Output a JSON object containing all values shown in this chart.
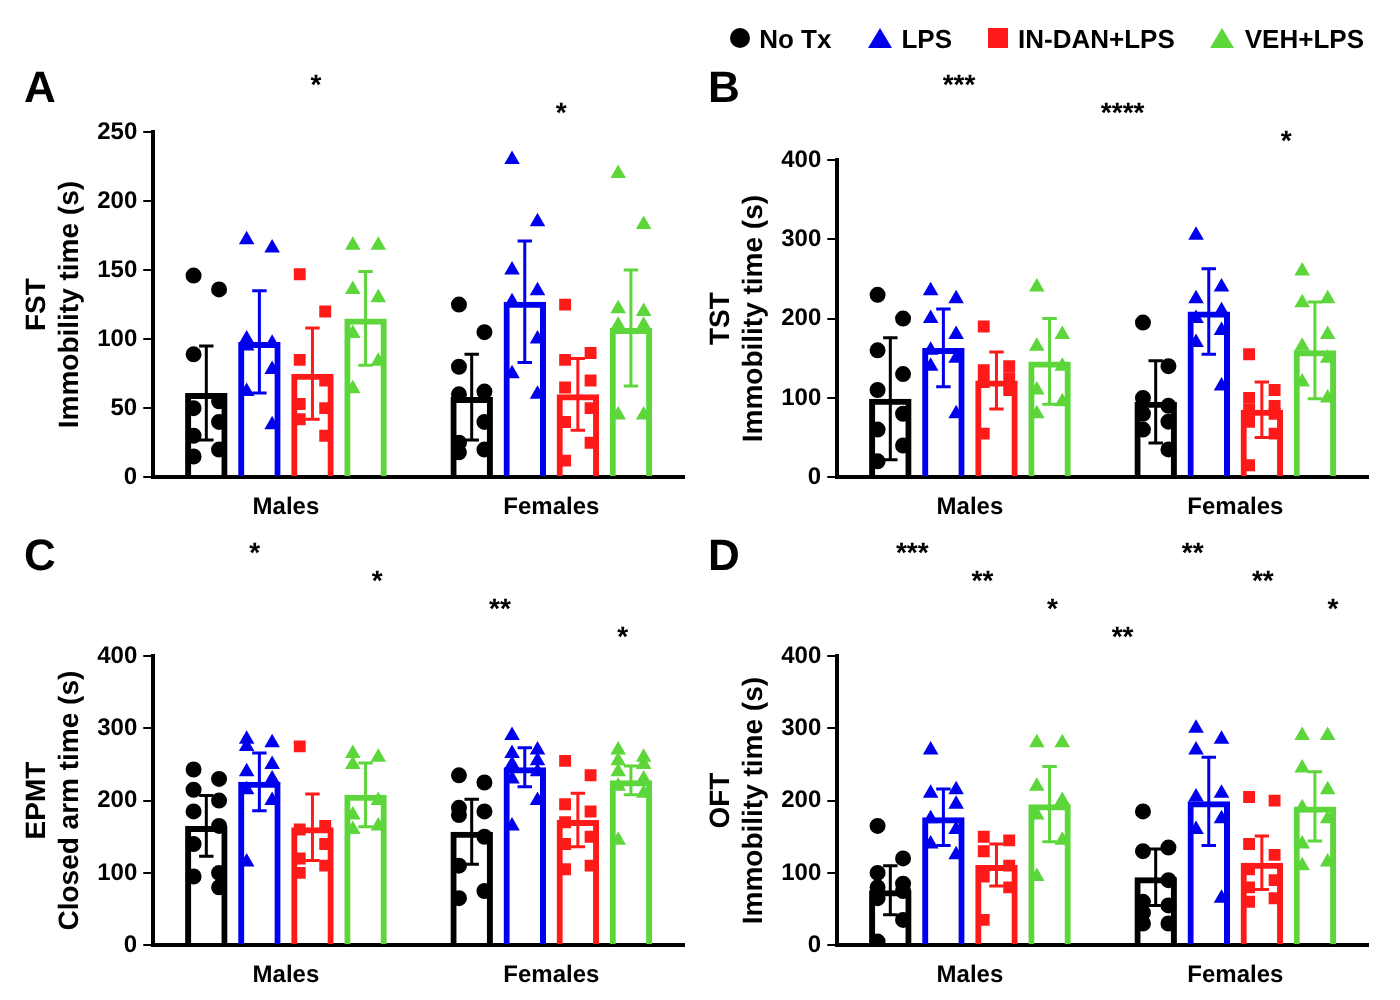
{
  "chart_data": [
    {
      "type": "bar",
      "title": "A",
      "ylabel": "FST\nImmobility time (s)",
      "categories": [
        "Males",
        "Females"
      ],
      "ylim": [
        0,
        250
      ],
      "yticks": [
        0,
        50,
        100,
        150,
        200,
        250
      ],
      "grid": false,
      "legend": "top",
      "annotations": [
        "*",
        "*"
      ],
      "series": [
        {
          "type": "bar",
          "name": "No Tx",
          "color": "#000000",
          "values": [
            61,
            58
          ],
          "errors": [
            34,
            31
          ]
        },
        {
          "type": "bar",
          "name": "LPS",
          "color": "#0000ee",
          "values": [
            98,
            127
          ],
          "errors": [
            37,
            44
          ]
        },
        {
          "type": "bar",
          "name": "IN-DAN+LPS",
          "color": "#ff1a1a",
          "values": [
            75,
            60
          ],
          "errors": [
            33,
            26
          ]
        },
        {
          "type": "bar",
          "name": "VEH+LPS",
          "color": "#5cd63a",
          "values": [
            115,
            108
          ],
          "errors": [
            34,
            42
          ]
        },
        {
          "type": "scatter",
          "color": "#000000",
          "marker": "circle",
          "x": [
            "Males",
            "Males",
            "Males",
            "Males",
            "Males",
            "Males",
            "Males",
            "Males",
            "Males",
            "Females",
            "Females",
            "Females",
            "Females",
            "Females",
            "Females",
            "Females",
            "Females",
            "Females"
          ],
          "values": [
            146,
            136,
            89,
            55,
            50,
            40,
            30,
            20,
            15,
            125,
            105,
            80,
            62,
            60,
            40,
            25,
            20,
            18
          ]
        },
        {
          "type": "scatter",
          "color": "#0000ee",
          "marker": "triangle",
          "x": [
            "Males",
            "Males",
            "Males",
            "Males",
            "Males",
            "Males",
            "Males",
            "Males",
            "Females",
            "Females",
            "Females",
            "Females",
            "Females",
            "Females",
            "Females",
            "Females"
          ],
          "values": [
            172,
            166,
            100,
            97,
            95,
            78,
            62,
            38,
            230,
            185,
            150,
            135,
            127,
            100,
            75,
            60
          ]
        },
        {
          "type": "scatter",
          "color": "#ff1a1a",
          "marker": "square",
          "x": [
            "Males",
            "Males",
            "Males",
            "Males",
            "Males",
            "Males",
            "Males",
            "Males",
            "Females",
            "Females",
            "Females",
            "Females",
            "Females",
            "Females",
            "Females",
            "Females",
            "Females"
          ],
          "values": [
            147,
            120,
            85,
            70,
            53,
            50,
            42,
            30,
            125,
            90,
            85,
            70,
            65,
            50,
            40,
            25,
            12
          ]
        },
        {
          "type": "scatter",
          "color": "#5cd63a",
          "marker": "triangle",
          "x": [
            "Males",
            "Males",
            "Males",
            "Males",
            "Males",
            "Males",
            "Males",
            "Females",
            "Females",
            "Females",
            "Females",
            "Females",
            "Females",
            "Females",
            "Females"
          ],
          "values": [
            168,
            168,
            136,
            130,
            104,
            84,
            64,
            220,
            183,
            122,
            120,
            110,
            110,
            45,
            45
          ]
        }
      ]
    },
    {
      "type": "bar",
      "title": "B",
      "ylabel": "TST\nImmobility time (s)",
      "categories": [
        "Males",
        "Females"
      ],
      "ylim": [
        0,
        400
      ],
      "yticks": [
        0,
        100,
        200,
        300,
        400
      ],
      "grid": false,
      "annotations": [
        "***",
        "****",
        "*"
      ],
      "series": [
        {
          "type": "bar",
          "color": "#000000",
          "values": [
            99,
            95
          ],
          "errors": [
            77,
            52
          ]
        },
        {
          "type": "bar",
          "color": "#0000ee",
          "values": [
            163,
            209
          ],
          "errors": [
            49,
            54
          ]
        },
        {
          "type": "bar",
          "color": "#ff1a1a",
          "values": [
            122,
            85
          ],
          "errors": [
            36,
            35
          ]
        },
        {
          "type": "bar",
          "color": "#5cd63a",
          "values": [
            146,
            160
          ],
          "errors": [
            54,
            61
          ]
        },
        {
          "type": "scatter",
          "color": "#000000",
          "marker": "circle",
          "x": [
            "Males",
            "Males",
            "Males",
            "Males",
            "Males",
            "Males",
            "Males",
            "Males",
            "Males",
            "Females",
            "Females",
            "Females",
            "Females",
            "Females",
            "Females",
            "Females",
            "Females"
          ],
          "values": [
            230,
            200,
            160,
            130,
            110,
            80,
            60,
            40,
            20,
            195,
            140,
            100,
            90,
            80,
            70,
            60,
            35
          ]
        },
        {
          "type": "scatter",
          "color": "#0000ee",
          "marker": "triangle",
          "x": [
            "Males",
            "Males",
            "Males",
            "Males",
            "Males",
            "Males",
            "Males",
            "Males",
            "Females",
            "Females",
            "Females",
            "Females",
            "Females",
            "Females",
            "Females",
            "Females"
          ],
          "values": [
            235,
            225,
            200,
            180,
            160,
            150,
            140,
            80,
            305,
            240,
            225,
            210,
            200,
            185,
            170,
            115
          ]
        },
        {
          "type": "scatter",
          "color": "#ff1a1a",
          "marker": "square",
          "x": [
            "Males",
            "Males",
            "Males",
            "Males",
            "Males",
            "Males",
            "Males",
            "Females",
            "Females",
            "Females",
            "Females",
            "Females",
            "Females",
            "Females",
            "Females",
            "Females"
          ],
          "values": [
            190,
            140,
            135,
            125,
            120,
            110,
            55,
            155,
            110,
            100,
            90,
            85,
            80,
            70,
            55,
            15
          ]
        },
        {
          "type": "scatter",
          "color": "#5cd63a",
          "marker": "triangle",
          "x": [
            "Males",
            "Males",
            "Males",
            "Males",
            "Males",
            "Males",
            "Males",
            "Females",
            "Females",
            "Females",
            "Females",
            "Females",
            "Females",
            "Females",
            "Females"
          ],
          "values": [
            240,
            180,
            165,
            140,
            110,
            95,
            80,
            260,
            225,
            220,
            180,
            165,
            150,
            120,
            100
          ]
        }
      ]
    },
    {
      "type": "bar",
      "title": "C",
      "ylabel": "EPMT\nClosed arm time (s)",
      "categories": [
        "Males",
        "Females"
      ],
      "ylim": [
        0,
        400
      ],
      "yticks": [
        0,
        100,
        200,
        300,
        400
      ],
      "grid": false,
      "annotations": [
        "*",
        "*",
        "**",
        "*"
      ],
      "series": [
        {
          "type": "bar",
          "color": "#000000",
          "values": [
            165,
            157
          ],
          "errors": [
            42,
            45
          ]
        },
        {
          "type": "bar",
          "color": "#0000ee",
          "values": [
            226,
            246
          ],
          "errors": [
            40,
            27
          ]
        },
        {
          "type": "bar",
          "color": "#ff1a1a",
          "values": [
            163,
            173
          ],
          "errors": [
            46,
            37
          ]
        },
        {
          "type": "bar",
          "color": "#5cd63a",
          "values": [
            208,
            228
          ],
          "errors": [
            44,
            20
          ]
        },
        {
          "type": "scatter",
          "color": "#000000",
          "marker": "circle",
          "x": [
            "Males",
            "Males",
            "Males",
            "Males",
            "Males",
            "Males",
            "Males",
            "Males",
            "Males",
            "Males",
            "Females",
            "Females",
            "Females",
            "Females",
            "Females",
            "Females",
            "Females",
            "Females",
            "Females"
          ],
          "values": [
            243,
            230,
            215,
            200,
            185,
            165,
            140,
            100,
            95,
            80,
            235,
            225,
            190,
            185,
            180,
            150,
            110,
            75,
            65
          ]
        },
        {
          "type": "scatter",
          "color": "#0000ee",
          "marker": "triangle",
          "x": [
            "Males",
            "Males",
            "Males",
            "Males",
            "Males",
            "Males",
            "Males",
            "Males",
            "Males",
            "Females",
            "Females",
            "Females",
            "Females",
            "Females",
            "Females",
            "Females",
            "Females",
            "Females"
          ],
          "values": [
            285,
            280,
            275,
            250,
            240,
            230,
            215,
            200,
            115,
            290,
            270,
            265,
            255,
            250,
            240,
            230,
            200,
            165
          ]
        },
        {
          "type": "scatter",
          "color": "#ff1a1a",
          "marker": "square",
          "x": [
            "Males",
            "Males",
            "Males",
            "Males",
            "Males",
            "Males",
            "Males",
            "Females",
            "Females",
            "Females",
            "Females",
            "Females",
            "Females",
            "Females",
            "Females",
            "Females"
          ],
          "values": [
            275,
            165,
            160,
            140,
            120,
            110,
            100,
            255,
            235,
            195,
            185,
            170,
            150,
            140,
            110,
            105
          ]
        },
        {
          "type": "scatter",
          "color": "#5cd63a",
          "marker": "triangle",
          "x": [
            "Males",
            "Males",
            "Males",
            "Males",
            "Males",
            "Males",
            "Males",
            "Females",
            "Females",
            "Females",
            "Females",
            "Females",
            "Females",
            "Females",
            "Females",
            "Females"
          ],
          "values": [
            265,
            260,
            250,
            200,
            180,
            165,
            160,
            270,
            260,
            255,
            250,
            240,
            230,
            220,
            210,
            145
          ]
        }
      ]
    },
    {
      "type": "bar",
      "title": "D",
      "ylabel": "OFT\nImmobility time (s)",
      "categories": [
        "Males",
        "Females"
      ],
      "ylim": [
        0,
        400
      ],
      "yticks": [
        0,
        100,
        200,
        300,
        400
      ],
      "grid": false,
      "annotations": [
        "***",
        "**",
        "*",
        "**",
        "**",
        "**",
        "*"
      ],
      "series": [
        {
          "type": "bar",
          "color": "#000000",
          "values": [
            76,
            94
          ],
          "errors": [
            34,
            39
          ]
        },
        {
          "type": "bar",
          "color": "#0000ee",
          "values": [
            177,
            199
          ],
          "errors": [
            39,
            61
          ]
        },
        {
          "type": "bar",
          "color": "#ff1a1a",
          "values": [
            111,
            114
          ],
          "errors": [
            29,
            37
          ]
        },
        {
          "type": "bar",
          "color": "#5cd63a",
          "values": [
            195,
            192
          ],
          "errors": [
            52,
            48
          ]
        },
        {
          "type": "scatter",
          "color": "#000000",
          "marker": "circle",
          "x": [
            "Males",
            "Males",
            "Males",
            "Males",
            "Males",
            "Males",
            "Males",
            "Males",
            "Males",
            "Females",
            "Females",
            "Females",
            "Females",
            "Females",
            "Females",
            "Females",
            "Females",
            "Females"
          ],
          "values": [
            165,
            120,
            100,
            85,
            80,
            75,
            65,
            35,
            5,
            185,
            135,
            130,
            90,
            60,
            55,
            45,
            30,
            30
          ]
        },
        {
          "type": "scatter",
          "color": "#0000ee",
          "marker": "triangle",
          "x": [
            "Males",
            "Males",
            "Males",
            "Males",
            "Males",
            "Males",
            "Males",
            "Males",
            "Females",
            "Females",
            "Females",
            "Females",
            "Females",
            "Females",
            "Females",
            "Females"
          ],
          "values": [
            270,
            215,
            210,
            195,
            175,
            160,
            140,
            125,
            300,
            285,
            270,
            210,
            205,
            175,
            160,
            65
          ]
        },
        {
          "type": "scatter",
          "color": "#ff1a1a",
          "marker": "square",
          "x": [
            "Males",
            "Males",
            "Males",
            "Males",
            "Males",
            "Males",
            "Males",
            "Females",
            "Females",
            "Females",
            "Females",
            "Females",
            "Females",
            "Females",
            "Females",
            "Females"
          ],
          "values": [
            150,
            145,
            130,
            110,
            95,
            80,
            35,
            205,
            200,
            140,
            125,
            105,
            90,
            80,
            65,
            60
          ]
        },
        {
          "type": "scatter",
          "color": "#5cd63a",
          "marker": "triangle",
          "x": [
            "Males",
            "Males",
            "Males",
            "Males",
            "Males",
            "Males",
            "Males",
            "Females",
            "Females",
            "Females",
            "Females",
            "Females",
            "Females",
            "Females",
            "Females",
            "Females"
          ],
          "values": [
            280,
            280,
            220,
            200,
            180,
            145,
            95,
            290,
            290,
            245,
            215,
            190,
            175,
            140,
            115,
            110
          ]
        }
      ]
    }
  ]
}
